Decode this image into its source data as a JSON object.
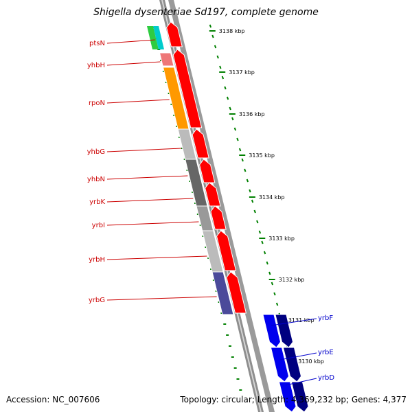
{
  "title": "Shigella dysenteriae Sd197, complete genome",
  "footer": {
    "accession": "Accession: NC_007606",
    "summary": "Topology: circular; Length: 4,369,232 bp; Genes: 4,377"
  },
  "colors": {
    "backbone": "#9a9a9a",
    "forward_gene": "#ff0000",
    "reverse_gene_outer": "#0000ee",
    "reverse_gene_inner": "#000080",
    "gene_label_forward": "#cc0000",
    "gene_label_reverse": "#0000cc",
    "tick": "#008000"
  },
  "ticks": [
    {
      "label": "3138 kbp"
    },
    {
      "label": "3137 kbp"
    },
    {
      "label": "3136 kbp"
    },
    {
      "label": "3135 kbp"
    },
    {
      "label": "3134 kbp"
    },
    {
      "label": "3133 kbp"
    },
    {
      "label": "3132 kbp"
    },
    {
      "label": "3131 kbp"
    },
    {
      "label": "3130 kbp"
    }
  ],
  "genes_forward": [
    {
      "name": "ptsN",
      "color": "#2ecc40"
    },
    {
      "name": "yhbH",
      "color": "#ee7777"
    },
    {
      "name": "rpoN",
      "color": "#ff9900"
    },
    {
      "name": "yhbG",
      "color": "#bbbbbb"
    },
    {
      "name": "yhbN",
      "color": "#666666"
    },
    {
      "name": "yrbK",
      "color": "#999999"
    },
    {
      "name": "yrbI",
      "color": "#bbbbbb"
    },
    {
      "name": "yrbH",
      "color": "#6b8e23"
    },
    {
      "name": "yrbG",
      "color": "#4b4a9a"
    }
  ],
  "genes_reverse": [
    {
      "name": "yrbF"
    },
    {
      "name": "yrbE"
    },
    {
      "name": "yrbD"
    }
  ]
}
